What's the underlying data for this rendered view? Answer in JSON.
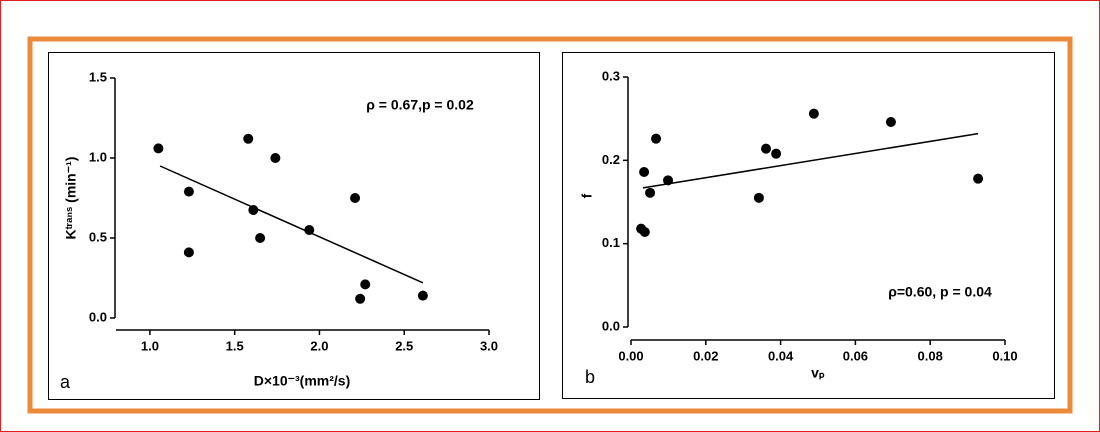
{
  "chart_data": [
    {
      "type": "scatter",
      "panel_label": "a",
      "annotation": "ρ = 0.67,p = 0.02",
      "x_label": "D×10⁻³(mm²/s)",
      "y_label": "Kᵗʳᵃⁿˢ (min⁻¹)",
      "color": "#000000",
      "x": [
        1.05,
        1.23,
        1.23,
        1.58,
        1.74,
        1.61,
        1.65,
        1.94,
        2.21,
        2.24,
        2.27,
        2.61
      ],
      "values": [
        1.06,
        0.79,
        0.41,
        1.12,
        1.0,
        0.675,
        0.5,
        0.55,
        0.75,
        0.12,
        0.21,
        0.14
      ],
      "fit": {
        "x": [
          1.06,
          2.61
        ],
        "y": [
          0.95,
          0.22
        ]
      },
      "xlim": [
        0.8,
        3.0
      ],
      "ylim": [
        0,
        1.5
      ],
      "xticks": [
        {
          "value": 1.0,
          "label": "1.0"
        },
        1.5,
        {
          "value": 2.0,
          "label": "2.0"
        },
        2.5,
        {
          "value": 3.0,
          "label": "3.0"
        }
      ],
      "yticks": [
        {
          "value": 0,
          "label": "0.0"
        },
        0.5,
        {
          "value": 1.0,
          "label": "1.0"
        },
        1.5
      ]
    },
    {
      "type": "scatter",
      "panel_label": "b",
      "annotation": "ρ=0.60, p = 0.04",
      "x_label": "vₚ",
      "y_label": "f",
      "color": "#000000",
      "x": [
        0.0027,
        0.0037,
        0.0035,
        0.0051,
        0.0067,
        0.0099,
        0.0342,
        0.0361,
        0.0388,
        0.0489,
        0.0695,
        0.0928
      ],
      "values": [
        0.118,
        0.114,
        0.186,
        0.161,
        0.226,
        0.176,
        0.155,
        0.214,
        0.208,
        0.256,
        0.246,
        0.178
      ],
      "fit": {
        "x": [
          0.0032,
          0.0928
        ],
        "y": [
          0.167,
          0.232
        ]
      },
      "xlim": [
        0,
        0.1
      ],
      "ylim": [
        0,
        0.3
      ],
      "xticks": [
        {
          "value": 0,
          "label": "0.00"
        },
        0.02,
        0.04,
        0.06,
        0.08,
        {
          "value": 0.1,
          "label": "0.10"
        }
      ],
      "yticks": [
        {
          "value": 0,
          "label": "0.0"
        },
        0.1,
        0.2,
        0.3
      ]
    }
  ]
}
